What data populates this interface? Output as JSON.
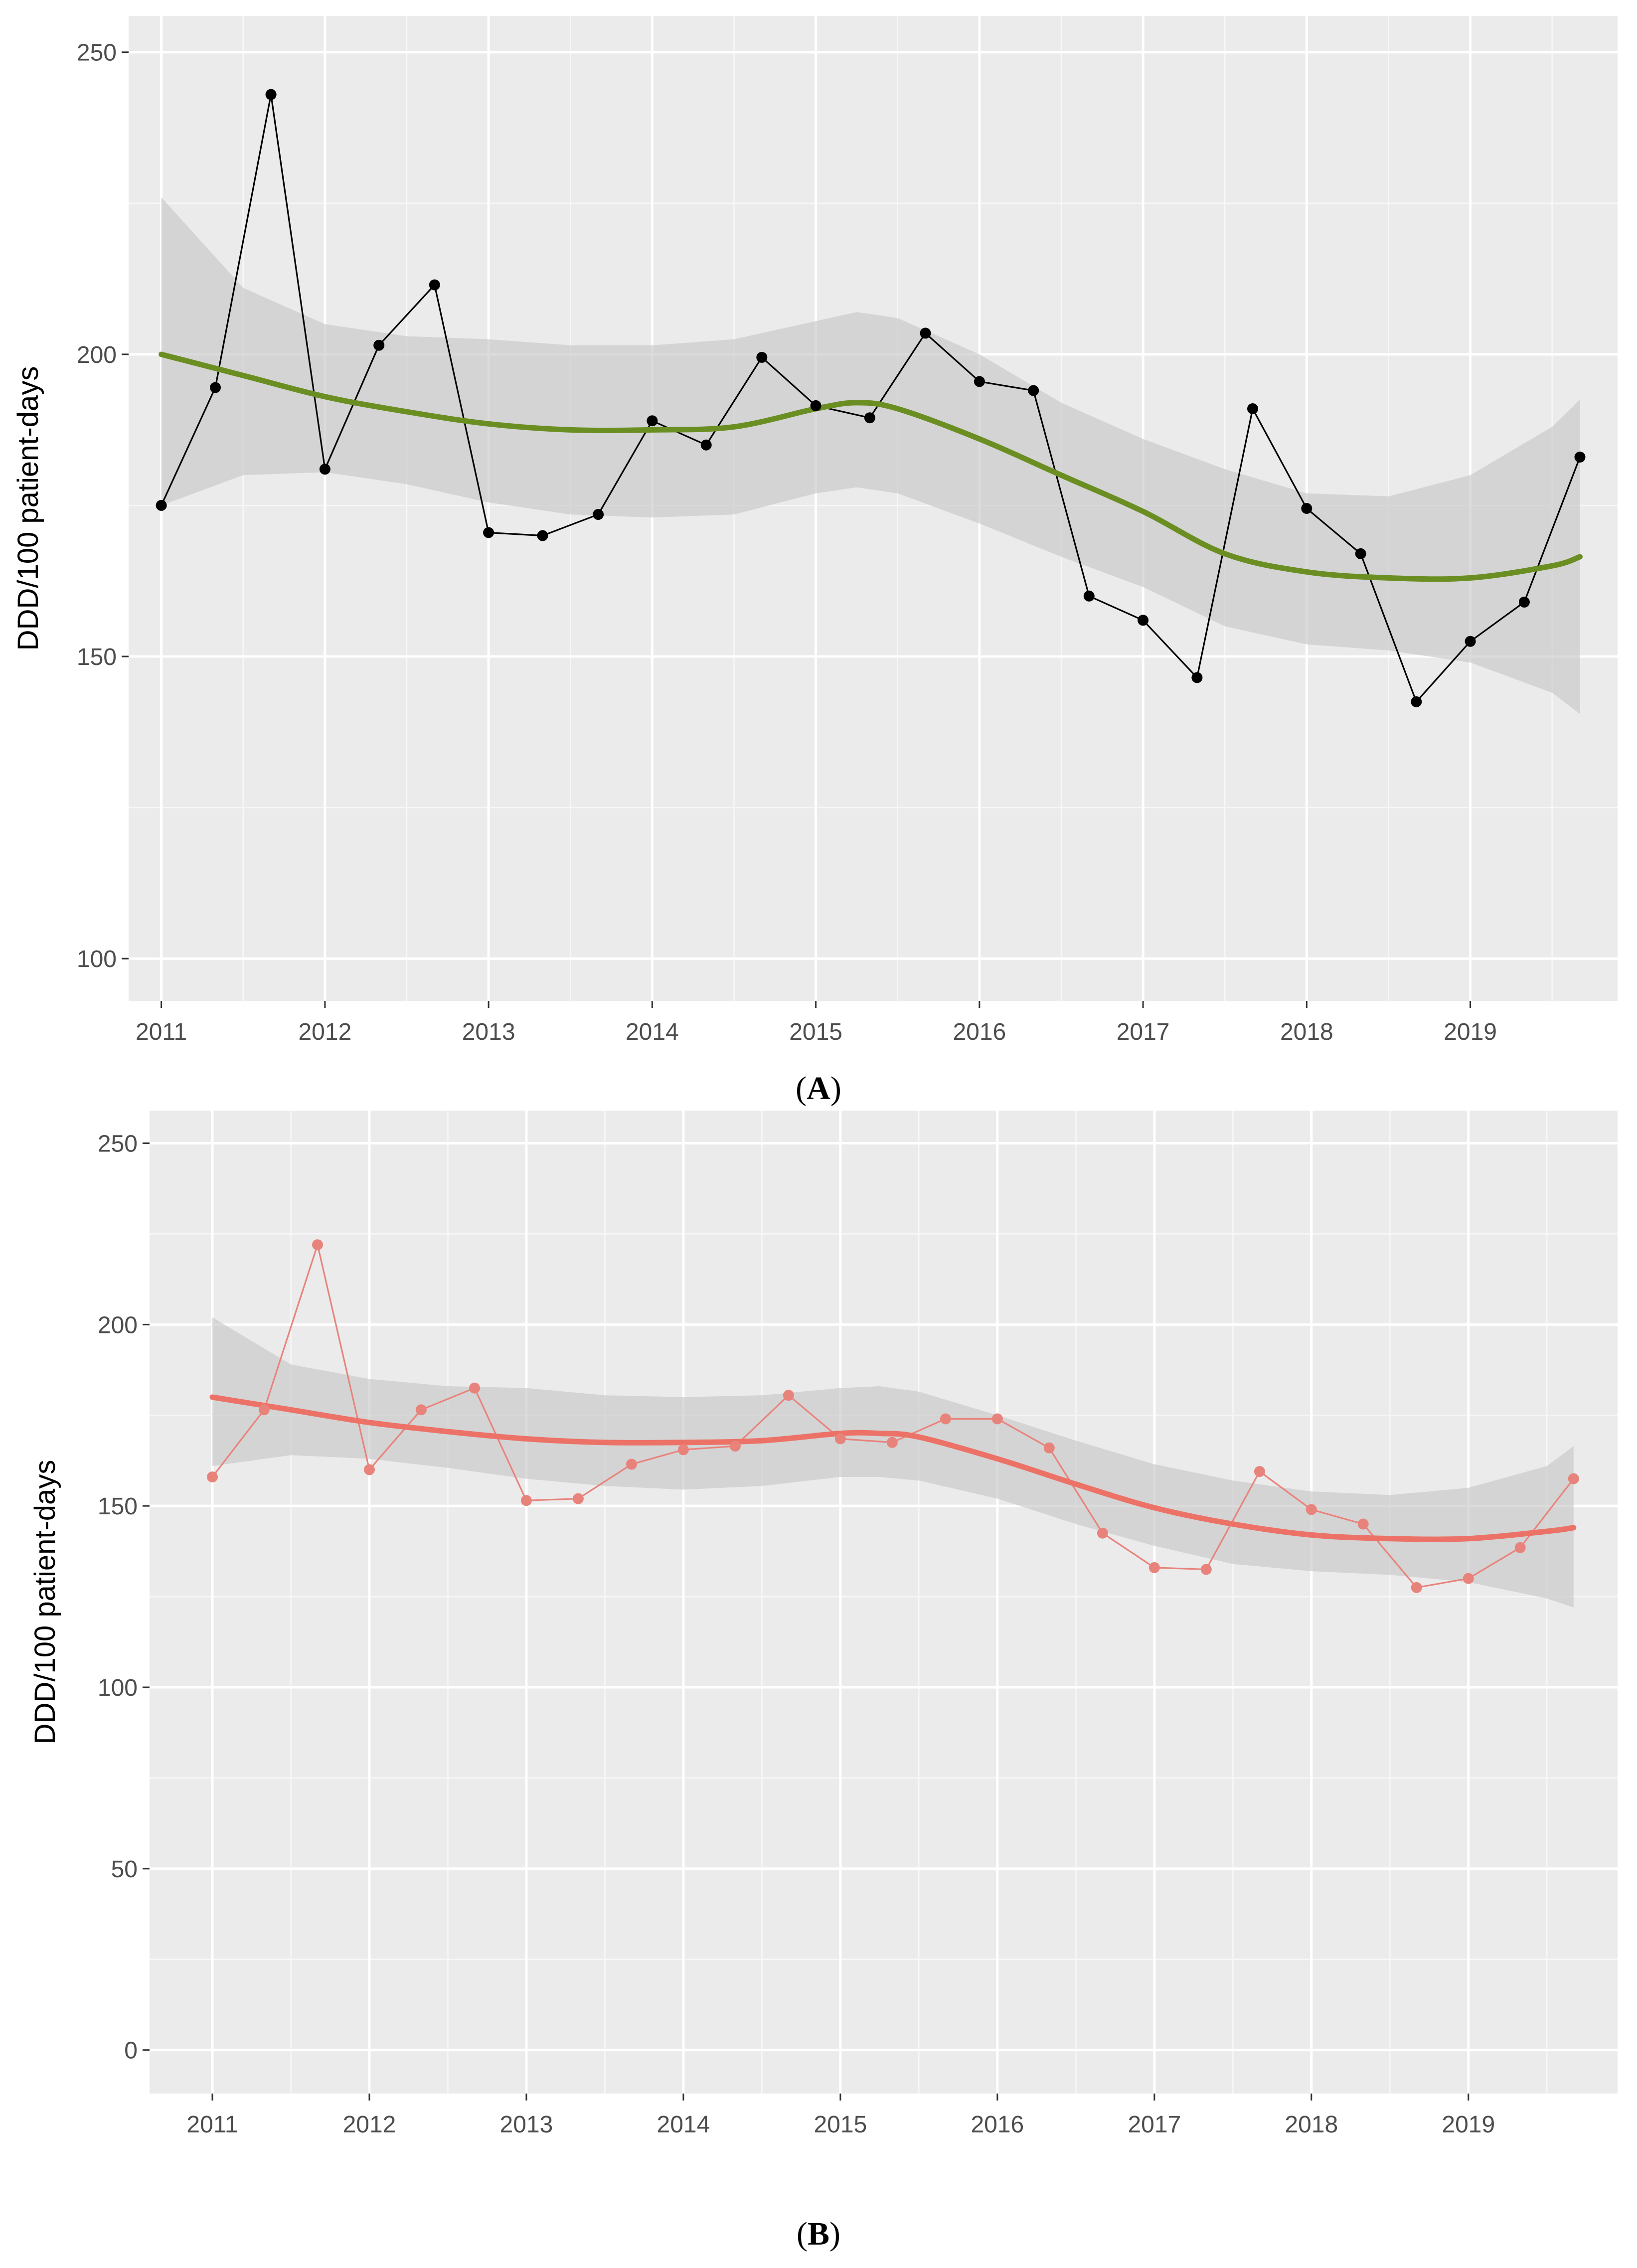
{
  "figure": {
    "panel_labels": [
      "A",
      "B"
    ]
  },
  "chart_data": [
    {
      "type": "line",
      "panel": "A",
      "title": "",
      "xlabel": "",
      "ylabel": "DDD/100 patient-days",
      "xlim": [
        2010.8,
        2019.9
      ],
      "ylim": [
        93,
        256
      ],
      "x_ticks": [
        2011,
        2012,
        2013,
        2014,
        2015,
        2016,
        2017,
        2018,
        2019
      ],
      "x_tick_labels": [
        "2011",
        "2012",
        "2013",
        "2014",
        "2015",
        "2016",
        "2017",
        "2018",
        "2019"
      ],
      "y_ticks": [
        100,
        150,
        200,
        250
      ],
      "y_tick_labels": [
        "100",
        "150",
        "200",
        "250"
      ],
      "grid": true,
      "colors": {
        "observed": "#000000",
        "smooth": "#6b8e23",
        "band": "#c8c8c8",
        "panel_bg": "#ebebeb"
      },
      "series": [
        {
          "name": "observed",
          "x": [
            2011.0,
            2011.33,
            2011.67,
            2012.0,
            2012.33,
            2012.67,
            2013.0,
            2013.33,
            2013.67,
            2014.0,
            2014.33,
            2014.67,
            2015.0,
            2015.33,
            2015.67,
            2016.0,
            2016.33,
            2016.67,
            2017.0,
            2017.33,
            2017.67,
            2018.0,
            2018.33,
            2018.67,
            2019.0,
            2019.33,
            2019.67
          ],
          "values": [
            175,
            194.5,
            243,
            181,
            201.5,
            211.5,
            170.5,
            170,
            173.5,
            189,
            185,
            199.5,
            191.5,
            189.5,
            203.5,
            195.5,
            194,
            160,
            156,
            146.5,
            191,
            174.5,
            167,
            142.5,
            152.5,
            159,
            183
          ]
        },
        {
          "name": "smooth",
          "x": [
            2011.0,
            2011.5,
            2012.0,
            2012.5,
            2013.0,
            2013.5,
            2014.0,
            2014.5,
            2015.0,
            2015.25,
            2015.5,
            2016.0,
            2016.5,
            2017.0,
            2017.5,
            2018.0,
            2018.5,
            2019.0,
            2019.5,
            2019.67
          ],
          "values": [
            200,
            196.5,
            193,
            190.5,
            188.5,
            187.5,
            187.5,
            188,
            191,
            192,
            191,
            186,
            180,
            174,
            167,
            164,
            163,
            163,
            165,
            166.5
          ]
        },
        {
          "name": "confidence_band",
          "x": [
            2011.0,
            2011.5,
            2012.0,
            2012.5,
            2013.0,
            2013.5,
            2014.0,
            2014.5,
            2015.0,
            2015.25,
            2015.5,
            2016.0,
            2016.5,
            2017.0,
            2017.5,
            2018.0,
            2018.5,
            2019.0,
            2019.5,
            2019.67
          ],
          "upper": [
            226,
            211,
            205,
            203,
            202.5,
            201.5,
            201.5,
            202.5,
            205.5,
            207,
            206,
            200,
            192,
            186,
            181,
            177,
            176.5,
            180,
            188,
            192.5
          ],
          "lower": [
            175,
            180,
            180.5,
            178.5,
            175.5,
            173.5,
            173,
            173.5,
            177,
            178,
            177,
            172,
            166.5,
            161.5,
            155,
            152,
            151,
            149,
            144,
            140.5
          ]
        }
      ]
    },
    {
      "type": "line",
      "panel": "B",
      "title": "",
      "xlabel": "",
      "ylabel": "DDD/100 patient-days",
      "xlim": [
        2010.6,
        2019.95
      ],
      "ylim": [
        -12,
        259
      ],
      "x_ticks": [
        2011,
        2012,
        2013,
        2014,
        2015,
        2016,
        2017,
        2018,
        2019
      ],
      "x_tick_labels": [
        "2011",
        "2012",
        "2013",
        "2014",
        "2015",
        "2016",
        "2017",
        "2018",
        "2019"
      ],
      "y_ticks": [
        0,
        50,
        100,
        150,
        200,
        250
      ],
      "y_tick_labels": [
        "0",
        "50",
        "100",
        "150",
        "200",
        "250"
      ],
      "grid": true,
      "colors": {
        "observed": "#e8837c",
        "smooth": "#ec7267",
        "band": "#c8c8c8",
        "panel_bg": "#ebebeb"
      },
      "series": [
        {
          "name": "observed",
          "x": [
            2011.0,
            2011.33,
            2011.67,
            2012.0,
            2012.33,
            2012.67,
            2013.0,
            2013.33,
            2013.67,
            2014.0,
            2014.33,
            2014.67,
            2015.0,
            2015.33,
            2015.67,
            2016.0,
            2016.33,
            2016.67,
            2017.0,
            2017.33,
            2017.67,
            2018.0,
            2018.33,
            2018.67,
            2019.0,
            2019.33,
            2019.67
          ],
          "values": [
            158,
            176.5,
            222,
            160,
            176.5,
            182.5,
            151.5,
            152,
            161.5,
            165.5,
            166.5,
            180.5,
            168.5,
            167.5,
            174,
            174,
            166,
            142.5,
            133,
            132.5,
            159.5,
            149,
            145,
            127.5,
            130,
            138.5,
            157.5
          ]
        },
        {
          "name": "smooth",
          "x": [
            2011.0,
            2011.5,
            2012.0,
            2012.5,
            2013.0,
            2013.5,
            2014.0,
            2014.5,
            2015.0,
            2015.25,
            2015.5,
            2016.0,
            2016.5,
            2017.0,
            2017.5,
            2018.0,
            2018.5,
            2019.0,
            2019.5,
            2019.67
          ],
          "values": [
            180,
            176.5,
            173,
            170.5,
            168.5,
            167.5,
            167.5,
            168,
            170,
            170,
            169,
            163,
            156,
            149.5,
            145,
            142,
            141,
            141,
            143,
            144
          ]
        },
        {
          "name": "confidence_band",
          "x": [
            2011.0,
            2011.5,
            2012.0,
            2012.5,
            2013.0,
            2013.5,
            2014.0,
            2014.5,
            2015.0,
            2015.25,
            2015.5,
            2016.0,
            2016.5,
            2017.0,
            2017.5,
            2018.0,
            2018.5,
            2019.0,
            2019.5,
            2019.67
          ],
          "upper": [
            202,
            189,
            185,
            183,
            182.5,
            180.5,
            180,
            180.5,
            182.5,
            183,
            181.5,
            175,
            168,
            161.5,
            157,
            154,
            153,
            155,
            161,
            166.5
          ],
          "lower": [
            161,
            164,
            163,
            160.5,
            157.5,
            155.5,
            154.5,
            155.5,
            158,
            158,
            157,
            152,
            145,
            139,
            134,
            132,
            131,
            129,
            124.5,
            122
          ]
        }
      ]
    }
  ]
}
